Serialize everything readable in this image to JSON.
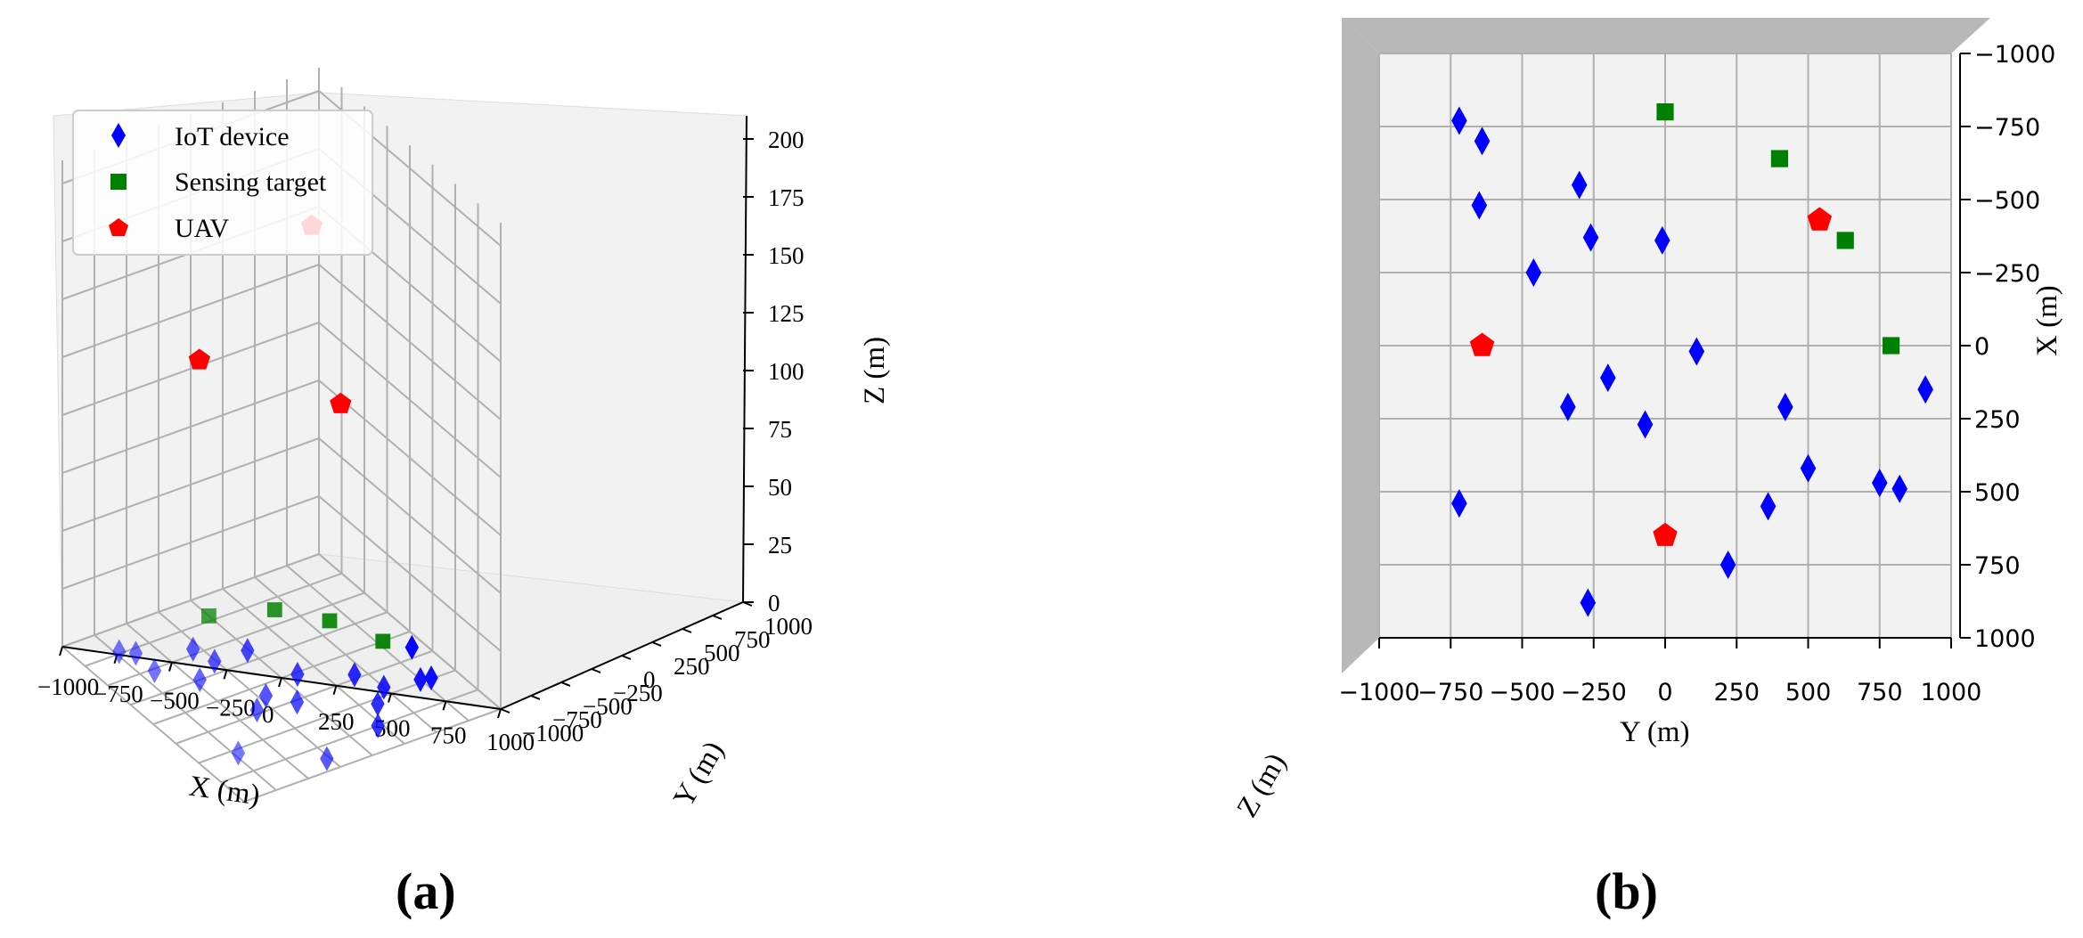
{
  "figure": {
    "panel_labels": [
      "(a)",
      "(b)"
    ]
  },
  "colors": {
    "iot": "#0000ff",
    "target": "#008000",
    "uav": "#ff0000",
    "grid": "#b0b0b0",
    "pane": "#f2f2f2"
  },
  "chart_data": [
    {
      "type": "scatter",
      "view": "3d",
      "panel": "(a)",
      "xlabel": "X (m)",
      "ylabel": "Y (m)",
      "zlabel": "Z (m)",
      "xlim": [
        -1000,
        1000
      ],
      "ylim": [
        -1000,
        1000
      ],
      "zlim": [
        0,
        210
      ],
      "x_ticks": [
        "−1000",
        "−750",
        "−500",
        "−250",
        "0",
        "250",
        "500",
        "750",
        "1000"
      ],
      "y_ticks": [
        "−1000",
        "−750",
        "−500",
        "−250",
        "0",
        "250",
        "500",
        "750",
        "1000"
      ],
      "z_ticks": [
        "0",
        "25",
        "50",
        "75",
        "100",
        "125",
        "150",
        "175",
        "200"
      ],
      "legend": {
        "position": "top-left",
        "entries": [
          {
            "label": "IoT device",
            "marker": "thin-diamond",
            "color": "#0000ff"
          },
          {
            "label": "Sensing target",
            "marker": "square",
            "color": "#008000"
          },
          {
            "label": "UAV",
            "marker": "pentagon",
            "color": "#ff0000"
          }
        ]
      },
      "grid": true
    },
    {
      "type": "scatter",
      "view": "top",
      "panel": "(b)",
      "xlabel": "Y (m)",
      "ylabel": "X (m)",
      "zlabel": "Z (m)",
      "xlim": [
        -1000,
        1000
      ],
      "ylim": [
        -1000,
        1000
      ],
      "x_ticks": [
        "−1000",
        "−750",
        "−500",
        "−250",
        "0",
        "250",
        "500",
        "750",
        "1000"
      ],
      "y_ticks": [
        "−1000",
        "−750",
        "−500",
        "−250",
        "0",
        "250",
        "500",
        "750",
        "1000"
      ],
      "grid": true,
      "series": [
        {
          "name": "IoT device",
          "points": [
            {
              "y": -720,
              "x": -770
            },
            {
              "y": -640,
              "x": -700
            },
            {
              "y": -650,
              "x": -480
            },
            {
              "y": -300,
              "x": -550
            },
            {
              "y": -260,
              "x": -370
            },
            {
              "y": -10,
              "x": -360
            },
            {
              "y": -460,
              "x": -250
            },
            {
              "y": 110,
              "x": 20
            },
            {
              "y": -200,
              "x": 110
            },
            {
              "y": -340,
              "x": 210
            },
            {
              "y": -70,
              "x": 270
            },
            {
              "y": 420,
              "x": 210
            },
            {
              "y": 500,
              "x": 420
            },
            {
              "y": 360,
              "x": 550
            },
            {
              "y": 750,
              "x": 470
            },
            {
              "y": 820,
              "x": 490
            },
            {
              "y": 910,
              "x": 150
            },
            {
              "y": -720,
              "x": 540
            },
            {
              "y": 220,
              "x": 750
            },
            {
              "y": -270,
              "x": 880
            }
          ]
        },
        {
          "name": "Sensing target",
          "points": [
            {
              "y": 0,
              "x": -800
            },
            {
              "y": 400,
              "x": -640
            },
            {
              "y": 630,
              "x": -360
            },
            {
              "y": 790,
              "x": 0
            }
          ]
        },
        {
          "name": "UAV",
          "points": [
            {
              "y": 540,
              "x": -430
            },
            {
              "y": -640,
              "x": 0
            },
            {
              "y": 0,
              "x": 650
            }
          ],
          "z": [
            170,
            150,
            140
          ]
        }
      ]
    }
  ]
}
